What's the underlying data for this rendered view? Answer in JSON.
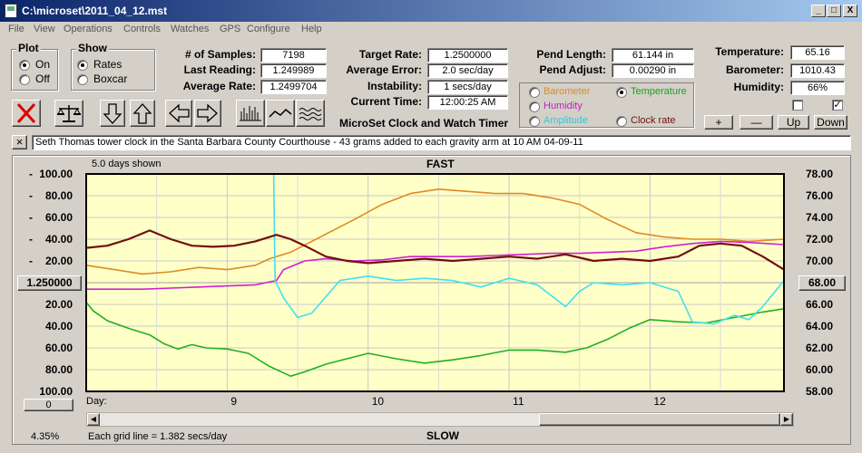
{
  "window": {
    "title": "C:\\microset\\2011_04_12.mst",
    "controls": [
      "_",
      "□",
      "X"
    ]
  },
  "menu": [
    "File",
    "View",
    "Operations",
    "Controls",
    "Watches",
    "GPS",
    "Configure",
    "Help"
  ],
  "plot_group": {
    "title": "Plot",
    "on": "On",
    "off": "Off",
    "selected": "On"
  },
  "show_group": {
    "title": "Show",
    "rates": "Rates",
    "boxcar": "Boxcar",
    "selected": "Rates"
  },
  "stats": {
    "samples_label": "# of Samples:",
    "samples": "7198",
    "last_reading_label": "Last Reading:",
    "last_reading": "1.249989",
    "average_rate_label": "Average Rate:",
    "average_rate": "1.2499704",
    "target_rate_label": "Target Rate:",
    "target_rate": "1.2500000",
    "average_error_label": "Average Error:",
    "average_error": "2.0 sec/day",
    "instability_label": "Instability:",
    "instability": "1 secs/day",
    "current_time_label": "Current Time:",
    "current_time": "12:00:25 AM",
    "pend_length_label": "Pend Length:",
    "pend_length": "61.144 in",
    "pend_adjust_label": "Pend Adjust:",
    "pend_adjust": "0.00290 in",
    "temperature_label": "Temperature:",
    "temperature": "65.16",
    "barometer_label": "Barometer:",
    "barometer": "1010.43",
    "humidity_label": "Humidity:",
    "humidity": "66%"
  },
  "app_name": "MicroSet Clock and Watch Timer",
  "series_select": {
    "barometer": "Barometer",
    "temperature": "Temperature",
    "humidity": "Humidity",
    "amplitude": "Amplitude",
    "clock_rate": "Clock rate",
    "selected": "Temperature"
  },
  "adjust_buttons": {
    "plus": "+",
    "minus": "—",
    "up": "Up",
    "down": "Down"
  },
  "toolbar_icons": [
    "clear-icon",
    "balance-icon",
    "arrow-down-icon",
    "arrow-up-icon",
    "arrow-left-icon",
    "arrow-right-icon",
    "bar-graph-icon",
    "line-graph-icon",
    "wave-graph-icon"
  ],
  "notes": {
    "close": "×",
    "text": "Seth Thomas tower clock in the Santa Barbara County Courthouse - 43 grams added to each gravity arm at 10 AM 04-09-11"
  },
  "graph": {
    "days_shown": "5.0 days shown",
    "fast_label": "FAST",
    "slow_label": "SLOW",
    "day_label": "Day:",
    "center_rate": "1.250000",
    "center_temp": "68.00",
    "bottom_button": "0",
    "percent": "4.35%",
    "grid_info": "Each grid line = 1.382 secs/day",
    "colors": {
      "background": "#ffffc8",
      "temperature": "#20b020",
      "barometer": "#e08a20",
      "humidity": "#d020d0",
      "amplitude": "#40e0f0",
      "clock_rate": "#701010"
    }
  },
  "chart_data": {
    "type": "line",
    "title": "",
    "xlabel": "Day:",
    "x_ticks": [
      "9",
      "10",
      "11",
      "12"
    ],
    "xlim": [
      8.0,
      12.95
    ],
    "y_left_ticks": [
      "100.00",
      "80.00",
      "60.00",
      "40.00",
      "20.00",
      "1.250000",
      "20.00",
      "40.00",
      "60.00",
      "80.00",
      "100.00"
    ],
    "ylim_left": [
      -100,
      100
    ],
    "y_right_ticks": [
      "78.00",
      "76.00",
      "74.00",
      "72.00",
      "70.00",
      "68.00",
      "66.00",
      "64.00",
      "62.00",
      "60.00",
      "58.00"
    ],
    "ylim_right": [
      58,
      78
    ],
    "series": [
      {
        "name": "Temperature",
        "axis": "right",
        "color": "#20b020",
        "x": [
          8.0,
          8.05,
          8.15,
          8.3,
          8.45,
          8.55,
          8.65,
          8.75,
          8.85,
          9.0,
          9.15,
          9.3,
          9.45,
          9.55,
          9.7,
          9.85,
          10.0,
          10.2,
          10.4,
          10.6,
          10.8,
          11.0,
          11.2,
          11.4,
          11.55,
          11.7,
          11.85,
          12.0,
          12.2,
          12.4,
          12.6,
          12.8,
          12.95
        ],
        "y": [
          66.2,
          65.4,
          64.5,
          63.8,
          63.2,
          62.4,
          61.9,
          62.3,
          62.0,
          61.9,
          61.5,
          60.3,
          59.4,
          59.8,
          60.5,
          61.0,
          61.5,
          61.0,
          60.6,
          60.9,
          61.3,
          61.8,
          61.8,
          61.6,
          62.0,
          62.8,
          63.8,
          64.6,
          64.4,
          64.3,
          64.8,
          65.3,
          65.6
        ]
      },
      {
        "name": "Barometer",
        "axis": "left",
        "color": "#e08a20",
        "x": [
          8.0,
          8.2,
          8.4,
          8.6,
          8.8,
          9.0,
          9.2,
          9.3,
          9.45,
          9.6,
          9.75,
          9.9,
          10.1,
          10.3,
          10.5,
          10.7,
          10.9,
          11.1,
          11.3,
          11.5,
          11.7,
          11.9,
          12.1,
          12.3,
          12.5,
          12.7,
          12.95
        ],
        "y": [
          16,
          12,
          8,
          10,
          14,
          12,
          16,
          22,
          28,
          38,
          48,
          58,
          72,
          82,
          86,
          84,
          82,
          82,
          78,
          72,
          58,
          46,
          42,
          40,
          40,
          38,
          40
        ]
      },
      {
        "name": "Humidity",
        "axis": "left",
        "color": "#d020d0",
        "x": [
          8.0,
          8.2,
          8.4,
          8.6,
          8.8,
          9.0,
          9.2,
          9.35,
          9.4,
          9.55,
          9.7,
          9.9,
          10.1,
          10.3,
          10.5,
          10.7,
          10.9,
          11.1,
          11.3,
          11.5,
          11.7,
          11.9,
          12.1,
          12.3,
          12.5,
          12.7,
          12.95
        ],
        "y": [
          -6,
          -6,
          -6,
          -5,
          -4,
          -3,
          -2,
          2,
          12,
          20,
          22,
          20,
          21,
          24,
          24,
          24,
          25,
          26,
          27,
          27,
          28,
          29,
          33,
          36,
          38,
          37,
          35
        ]
      },
      {
        "name": "Amplitude",
        "axis": "left",
        "color": "#40e0f0",
        "x": [
          8.0,
          8.5,
          9.0,
          9.33,
          9.34,
          9.4,
          9.5,
          9.6,
          9.8,
          10.0,
          10.2,
          10.4,
          10.6,
          10.8,
          11.0,
          11.2,
          11.4,
          11.5,
          11.6,
          11.8,
          12.0,
          12.2,
          12.3,
          12.45,
          12.6,
          12.7,
          12.8,
          12.95
        ],
        "y": [
          100,
          100,
          100,
          100,
          2,
          -14,
          -32,
          -28,
          2,
          6,
          2,
          4,
          2,
          -4,
          4,
          -2,
          -22,
          -8,
          0,
          -2,
          0,
          -8,
          -36,
          -38,
          -30,
          -34,
          -22,
          2
        ]
      },
      {
        "name": "Clock rate",
        "axis": "left",
        "color": "#701010",
        "x": [
          8.0,
          8.15,
          8.3,
          8.45,
          8.6,
          8.75,
          8.9,
          9.05,
          9.2,
          9.35,
          9.45,
          9.55,
          9.7,
          9.85,
          10.0,
          10.2,
          10.4,
          10.6,
          10.8,
          11.0,
          11.2,
          11.4,
          11.6,
          11.8,
          12.0,
          12.2,
          12.35,
          12.5,
          12.65,
          12.8,
          12.95
        ],
        "y": [
          32,
          34,
          40,
          48,
          40,
          34,
          33,
          34,
          38,
          44,
          40,
          34,
          24,
          20,
          18,
          20,
          22,
          20,
          22,
          24,
          22,
          26,
          20,
          22,
          20,
          24,
          34,
          36,
          34,
          24,
          12
        ]
      }
    ]
  }
}
